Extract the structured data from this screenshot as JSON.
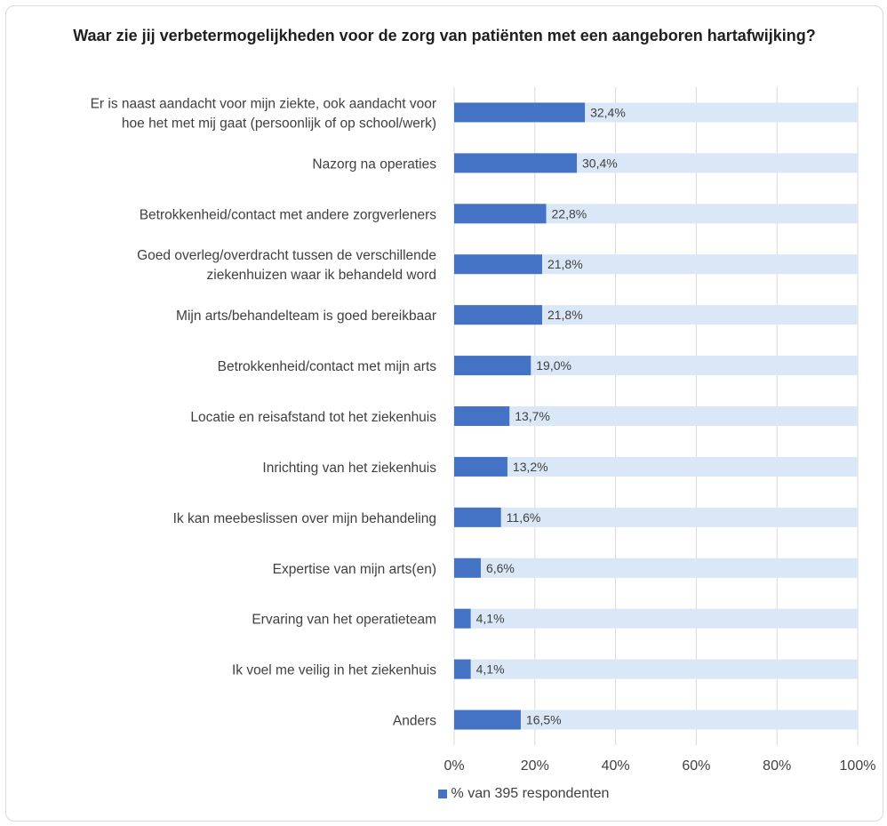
{
  "colors": {
    "bar": "#4472c4",
    "track": "#dae7f6",
    "grid": "#d9d9d9",
    "text": "#404040"
  },
  "chart_data": {
    "type": "bar",
    "orientation": "horizontal",
    "title": "Waar zie jij verbetermogelijkheden voor de zorg van patiënten met een aangeboren hartafwijking?",
    "categories": [
      [
        "Er is naast aandacht voor mijn ziekte, ook aandacht voor",
        "hoe het met mij gaat (persoonlijk of op school/werk)"
      ],
      [
        "Nazorg na operaties"
      ],
      [
        "Betrokkenheid/contact met andere zorgverleners"
      ],
      [
        "Goed overleg/overdracht tussen de verschillende",
        "ziekenhuizen waar ik behandeld word"
      ],
      [
        "Mijn arts/behandelteam is goed bereikbaar"
      ],
      [
        "Betrokkenheid/contact met mijn arts"
      ],
      [
        "Locatie en reisafstand tot het ziekenhuis"
      ],
      [
        "Inrichting van het ziekenhuis"
      ],
      [
        "Ik kan meebeslissen over mijn behandeling"
      ],
      [
        "Expertise van mijn arts(en)"
      ],
      [
        "Ervaring van het operatieteam"
      ],
      [
        "Ik voel me veilig in het ziekenhuis"
      ],
      [
        "Anders"
      ]
    ],
    "series": [
      {
        "name": "% van 395 respondenten",
        "values": [
          32.4,
          30.4,
          22.8,
          21.8,
          21.8,
          19.0,
          13.7,
          13.2,
          11.6,
          6.6,
          4.1,
          4.1,
          16.5
        ],
        "labels": [
          "32,4%",
          "30,4%",
          "22,8%",
          "21,8%",
          "21,8%",
          "19,0%",
          "13,7%",
          "13,2%",
          "11,6%",
          "6,6%",
          "4,1%",
          "4,1%",
          "16,5%"
        ]
      }
    ],
    "xlim": [
      0,
      100
    ],
    "xticks": [
      0,
      20,
      40,
      60,
      80,
      100
    ],
    "xtick_labels": [
      "0%",
      "20%",
      "40%",
      "60%",
      "80%",
      "100%"
    ],
    "grid": true,
    "legend_position": "bottom"
  }
}
